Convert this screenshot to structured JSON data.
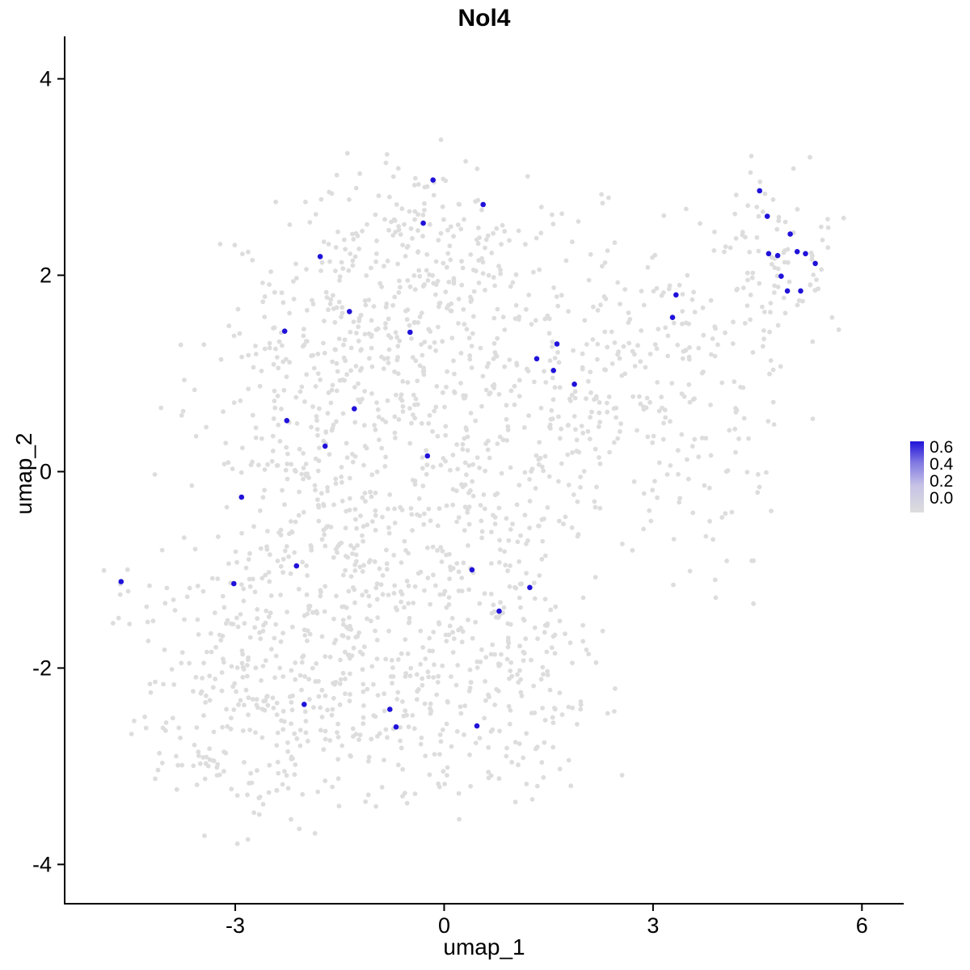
{
  "chart_data": {
    "type": "scatter",
    "title": "Nol4",
    "xlabel": "umap_1",
    "ylabel": "umap_2",
    "xlim": [
      -5.45,
      6.6
    ],
    "ylim": [
      -4.4,
      4.35
    ],
    "x_ticks": [
      -3,
      0,
      3,
      6
    ],
    "y_ticks": [
      -4,
      -2,
      0,
      2,
      4
    ],
    "grid": false,
    "axis_color": "#000000",
    "point_color_low": "#DDDDDD",
    "point_color_high": "#2012D9",
    "background_point_radius": 2.9,
    "highlight_point_radius": 3.3,
    "seed": 42,
    "background_clusters": [
      {
        "cx": -2.4,
        "cy": -2.5,
        "sx": 0.95,
        "sy": 0.55,
        "n": 220
      },
      {
        "cx": -1.3,
        "cy": -1.6,
        "sx": 1.0,
        "sy": 0.65,
        "n": 180
      },
      {
        "cx": -2.2,
        "cy": -0.5,
        "sx": 0.85,
        "sy": 0.8,
        "n": 180
      },
      {
        "cx": -1.6,
        "cy": 0.8,
        "sx": 0.9,
        "sy": 0.7,
        "n": 160
      },
      {
        "cx": -1.0,
        "cy": 1.9,
        "sx": 1.0,
        "sy": 0.55,
        "n": 140
      },
      {
        "cx": 0.0,
        "cy": 2.4,
        "sx": 0.8,
        "sy": 0.42,
        "n": 110
      },
      {
        "cx": -0.2,
        "cy": 0.9,
        "sx": 0.8,
        "sy": 0.8,
        "n": 130
      },
      {
        "cx": 0.3,
        "cy": -0.3,
        "sx": 0.9,
        "sy": 0.8,
        "n": 140
      },
      {
        "cx": 0.6,
        "cy": -1.6,
        "sx": 0.9,
        "sy": 0.65,
        "n": 130
      },
      {
        "cx": 0.2,
        "cy": -2.6,
        "sx": 0.8,
        "sy": 0.45,
        "n": 80
      },
      {
        "cx": 1.5,
        "cy": 0.6,
        "sx": 0.7,
        "sy": 0.8,
        "n": 100
      },
      {
        "cx": 2.3,
        "cy": 1.2,
        "sx": 0.6,
        "sy": 0.7,
        "n": 80
      },
      {
        "cx": 3.2,
        "cy": 0.9,
        "sx": 0.7,
        "sy": 0.8,
        "n": 80
      },
      {
        "cx": 4.0,
        "cy": 1.5,
        "sx": 0.6,
        "sy": 0.7,
        "n": 70
      },
      {
        "cx": 4.8,
        "cy": 2.2,
        "sx": 0.42,
        "sy": 0.5,
        "n": 70
      },
      {
        "cx": 3.6,
        "cy": -0.2,
        "sx": 0.5,
        "sy": 0.5,
        "n": 35
      },
      {
        "cx": -4.65,
        "cy": -1.25,
        "sx": 0.12,
        "sy": 0.18,
        "n": 8
      },
      {
        "cx": -3.6,
        "cy": -2.0,
        "sx": 0.5,
        "sy": 0.55,
        "n": 50
      },
      {
        "cx": 1.2,
        "cy": -2.2,
        "sx": 0.65,
        "sy": 0.5,
        "n": 55
      }
    ],
    "highlight_points": [
      {
        "x": -0.16,
        "y": 2.97
      },
      {
        "x": 0.56,
        "y": 2.72
      },
      {
        "x": -0.3,
        "y": 2.53
      },
      {
        "x": -1.78,
        "y": 2.19
      },
      {
        "x": 4.53,
        "y": 2.86
      },
      {
        "x": 4.64,
        "y": 2.6
      },
      {
        "x": 4.97,
        "y": 2.42
      },
      {
        "x": 4.66,
        "y": 2.22
      },
      {
        "x": 4.79,
        "y": 2.2
      },
      {
        "x": 5.07,
        "y": 2.24
      },
      {
        "x": 5.19,
        "y": 2.22
      },
      {
        "x": 5.33,
        "y": 2.12
      },
      {
        "x": 4.84,
        "y": 1.99
      },
      {
        "x": 4.93,
        "y": 1.84
      },
      {
        "x": 5.12,
        "y": 1.84
      },
      {
        "x": 3.33,
        "y": 1.8
      },
      {
        "x": 3.28,
        "y": 1.57
      },
      {
        "x": -1.36,
        "y": 1.63
      },
      {
        "x": -2.29,
        "y": 1.43
      },
      {
        "x": -0.49,
        "y": 1.42
      },
      {
        "x": 1.62,
        "y": 1.3
      },
      {
        "x": 1.33,
        "y": 1.15
      },
      {
        "x": 1.57,
        "y": 1.03
      },
      {
        "x": 1.87,
        "y": 0.89
      },
      {
        "x": -1.29,
        "y": 0.64
      },
      {
        "x": -2.26,
        "y": 0.52
      },
      {
        "x": -1.71,
        "y": 0.26
      },
      {
        "x": -0.24,
        "y": 0.16
      },
      {
        "x": -2.91,
        "y": -0.26
      },
      {
        "x": -2.12,
        "y": -0.96
      },
      {
        "x": 0.4,
        "y": -1.0
      },
      {
        "x": -4.64,
        "y": -1.12
      },
      {
        "x": -3.02,
        "y": -1.14
      },
      {
        "x": 1.23,
        "y": -1.18
      },
      {
        "x": 0.79,
        "y": -1.42
      },
      {
        "x": -2.01,
        "y": -2.37
      },
      {
        "x": -0.78,
        "y": -2.42
      },
      {
        "x": -0.69,
        "y": -2.6
      },
      {
        "x": 0.47,
        "y": -2.59
      }
    ],
    "legend": {
      "position": "right",
      "tick_labels": [
        "0.6",
        "0.4",
        "0.2",
        "0.0"
      ],
      "high_color": "#2012D9",
      "low_color": "#DDDDDD",
      "gradient_stops": [
        {
          "offset": 0,
          "color": "#2012D9"
        },
        {
          "offset": 0.3,
          "color": "#8279E2"
        },
        {
          "offset": 0.62,
          "color": "#C6C3E6"
        },
        {
          "offset": 1,
          "color": "#DDDDDD"
        }
      ]
    }
  }
}
